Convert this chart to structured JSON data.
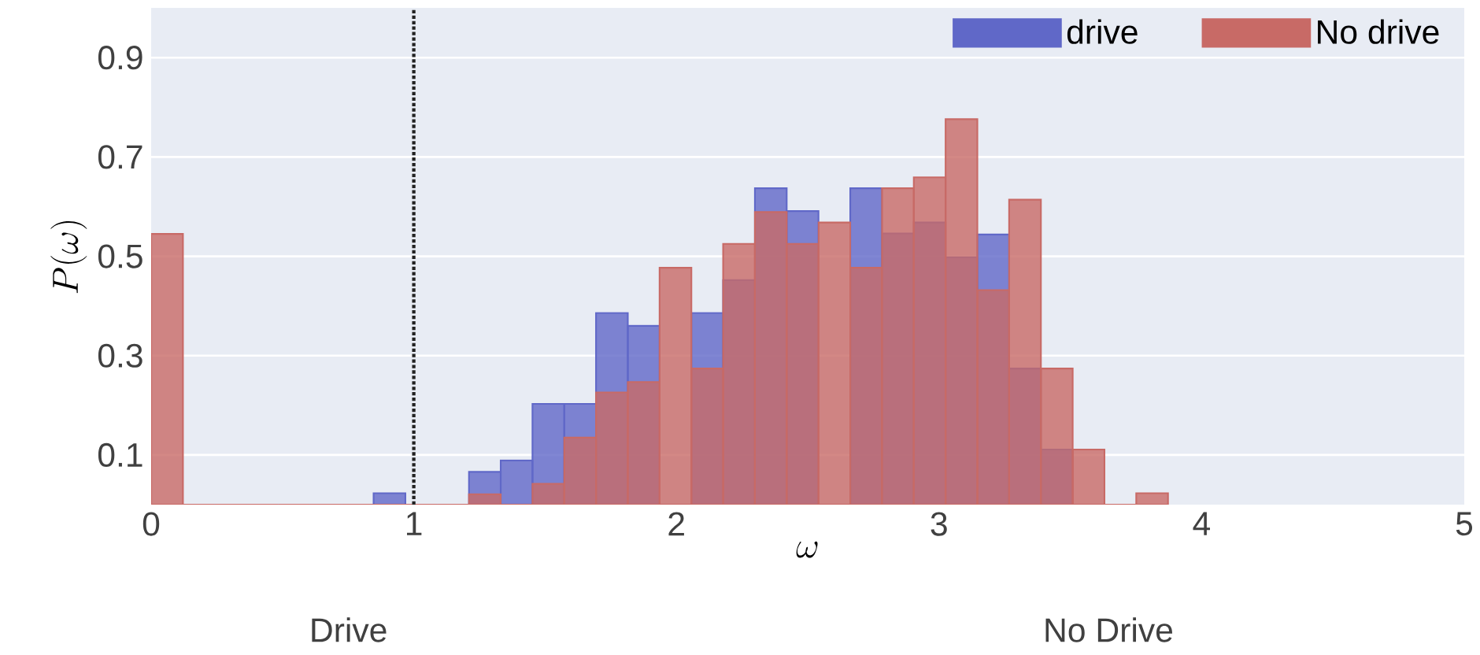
{
  "chart_data": {
    "type": "histogram",
    "xlabel": "\\omega",
    "ylabel": "P(\\omega)",
    "bins": [
      0,
      0.121,
      0.242,
      0.363,
      0.484,
      0.605,
      0.726,
      0.847,
      0.968,
      1.089,
      1.21,
      1.331,
      1.452,
      1.573,
      1.694,
      1.815,
      1.936,
      2.057,
      2.178,
      2.299,
      2.42,
      2.541,
      2.662,
      2.783,
      2.904,
      3.025,
      3.146,
      3.267,
      3.388,
      3.509,
      3.63,
      3.751,
      3.872
    ],
    "series": [
      {
        "name": "drive",
        "color": "#6068c8",
        "values": [
          null,
          0,
          0,
          0,
          0,
          0,
          0,
          0.023,
          0,
          0,
          0.066,
          0.089,
          0.203,
          0.203,
          0.386,
          0.36,
          null,
          0.386,
          0.452,
          0.637,
          0.591,
          null,
          0.637,
          0.546,
          0.568,
          0.498,
          0.544,
          0.274,
          0.111,
          0,
          0,
          0
        ]
      },
      {
        "name": "No drive",
        "color": "#c86a66",
        "values": [
          0.545,
          0,
          0,
          0,
          0,
          0,
          0,
          0,
          0,
          0,
          0.021,
          0,
          0.042,
          0.135,
          0.226,
          0.247,
          0.477,
          0.274,
          0.525,
          0.589,
          0.525,
          0.568,
          0.477,
          0.637,
          0.659,
          0.776,
          0.432,
          0.614,
          0.274,
          0.111,
          0,
          0.023
        ]
      }
    ],
    "xlim": [
      0,
      5
    ],
    "ylim": [
      0,
      1.0
    ],
    "xticks": [
      0,
      1,
      2,
      3,
      4,
      5
    ],
    "yticks": [
      0.1,
      0.3,
      0.5,
      0.7,
      0.9
    ],
    "grid": "y",
    "legend": "top right",
    "ref_lines": [
      {
        "axis": "x",
        "value": 1,
        "color": "#222222",
        "line_style": "dotted"
      }
    ],
    "annotations": [
      "Drive",
      "No Drive"
    ]
  }
}
